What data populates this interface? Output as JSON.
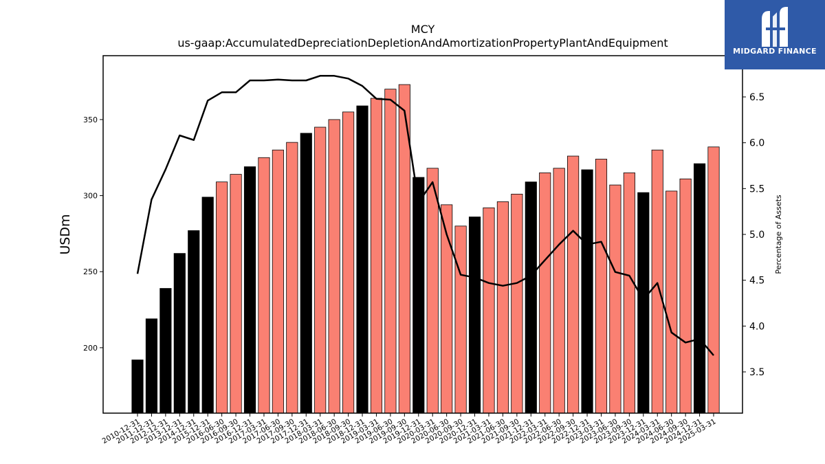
{
  "chart_data": {
    "type": "bar",
    "title": "MCY",
    "subtitle": "us-gaap:AccumulatedDepreciationDepletionAndAmortizationPropertyPlantAndEquipment",
    "ylabel": "USDm",
    "y2label": "Percentage of Assets",
    "ylim": [
      157,
      392
    ],
    "y2lim": [
      3.05,
      6.95
    ],
    "yticks": [
      200,
      250,
      300,
      350
    ],
    "y2ticks": [
      3.5,
      4.0,
      4.5,
      5.0,
      5.5,
      6.0,
      6.5
    ],
    "categories": [
      "2010-12-31",
      "2011-12-31",
      "2012-12-31",
      "2013-12-31",
      "2014-12-31",
      "2015-12-31",
      "2016-06-30",
      "2016-09-30",
      "2016-12-31",
      "2017-03-31",
      "2017-06-30",
      "2017-09-30",
      "2017-12-31",
      "2018-03-31",
      "2018-06-30",
      "2018-09-30",
      "2018-12-31",
      "2019-03-31",
      "2019-06-30",
      "2019-09-30",
      "2019-12-31",
      "2020-03-31",
      "2020-06-30",
      "2020-09-30",
      "2020-12-31",
      "2021-03-31",
      "2021-06-30",
      "2021-09-30",
      "2021-12-31",
      "2022-03-31",
      "2022-06-30",
      "2022-09-30",
      "2022-12-31",
      "2023-03-31",
      "2023-06-30",
      "2023-09-30",
      "2023-12-31",
      "2024-03-31",
      "2024-06-30",
      "2024-09-30",
      "2024-12-31",
      "2025-03-31"
    ],
    "series": [
      {
        "type": "bar",
        "values": [
          192,
          219,
          239,
          262,
          277,
          299,
          309,
          314,
          319,
          325,
          330,
          335,
          341,
          345,
          350,
          355,
          359,
          364,
          370,
          373,
          312,
          318,
          294,
          280,
          286,
          292,
          296,
          301,
          309,
          315,
          318,
          326,
          317,
          324,
          307,
          315,
          302,
          330,
          303,
          311,
          321,
          332
        ],
        "annual_color": "#000000",
        "quarterly_color": "#fa8072",
        "annual_flags": [
          true,
          true,
          true,
          true,
          true,
          true,
          false,
          false,
          true,
          false,
          false,
          false,
          true,
          false,
          false,
          false,
          true,
          false,
          false,
          false,
          true,
          false,
          false,
          false,
          true,
          false,
          false,
          false,
          true,
          false,
          false,
          false,
          true,
          false,
          false,
          false,
          true,
          false,
          false,
          false,
          true,
          false
        ]
      },
      {
        "type": "line",
        "axis": "right",
        "color": "#000000",
        "values": [
          4.57,
          5.38,
          5.71,
          6.08,
          6.03,
          6.46,
          6.55,
          6.55,
          6.68,
          6.68,
          6.69,
          6.68,
          6.68,
          6.73,
          6.73,
          6.7,
          6.62,
          6.48,
          6.47,
          6.35,
          5.35,
          5.57,
          5.0,
          4.56,
          4.53,
          4.47,
          4.44,
          4.47,
          4.55,
          4.72,
          4.89,
          5.04,
          4.89,
          4.92,
          4.59,
          4.55,
          4.29,
          4.47,
          3.93,
          3.82,
          3.86,
          3.68
        ]
      }
    ]
  },
  "branding": {
    "logo_text": "MIDGARD FINANCE",
    "logo_bg": "#2f5aa8"
  }
}
